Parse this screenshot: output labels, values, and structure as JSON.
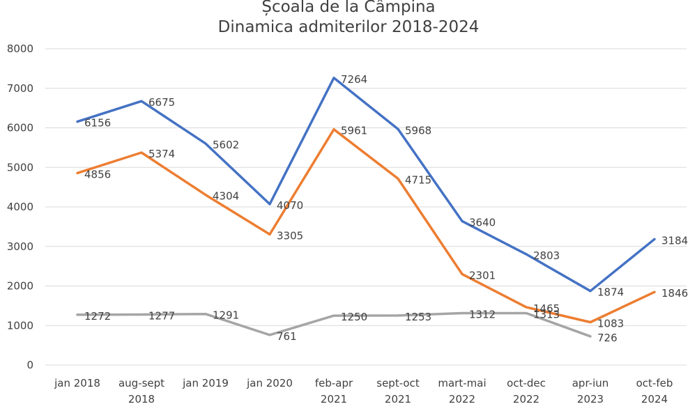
{
  "chart_data": {
    "type": "line",
    "title": [
      "Școala de la Câmpina",
      "Dinamica admiterilor 2018-2024"
    ],
    "xlabel": "",
    "ylabel": "",
    "ylim": [
      0,
      8000
    ],
    "yticks": [
      "0",
      "1000",
      "2000",
      "3000",
      "4000",
      "5000",
      "6000",
      "7000",
      "8000"
    ],
    "grid": true,
    "legend": "none",
    "categories": [
      [
        "jan 2018"
      ],
      [
        "aug-sept",
        "2018"
      ],
      [
        "jan 2019"
      ],
      [
        "jan 2020"
      ],
      [
        "feb-apr",
        "2021"
      ],
      [
        "sept-oct",
        "2021"
      ],
      [
        "mart-mai",
        "2022"
      ],
      [
        "oct-dec",
        "2022"
      ],
      [
        "apr-iun",
        "2023"
      ],
      [
        "oct-feb",
        "2024"
      ]
    ],
    "series": [
      {
        "name": "series-blue",
        "color": "#4472c4",
        "values": [
          6156,
          6675,
          5602,
          4070,
          7264,
          5968,
          3640,
          2803,
          1874,
          3184
        ],
        "labels": [
          "6156",
          "6675",
          "5602",
          "4070",
          "7264",
          "5968",
          "3640",
          "2803",
          "1874",
          "3184"
        ]
      },
      {
        "name": "series-orange",
        "color": "#ed7d31",
        "values": [
          4856,
          5374,
          4304,
          3305,
          5961,
          4715,
          2301,
          1465,
          1083,
          1846
        ],
        "labels": [
          "4856",
          "5374",
          "4304",
          "3305",
          "5961",
          "4715",
          "2301",
          "1465",
          "1083",
          "1846"
        ]
      },
      {
        "name": "series-gray",
        "color": "#a5a5a5",
        "values": [
          1272,
          1277,
          1291,
          761,
          1250,
          1253,
          1312,
          1313,
          726,
          null
        ],
        "labels": [
          "1272",
          "1277",
          "1291",
          "761",
          "1250",
          "1253",
          "1312",
          "1313",
          "726",
          null
        ]
      }
    ]
  }
}
